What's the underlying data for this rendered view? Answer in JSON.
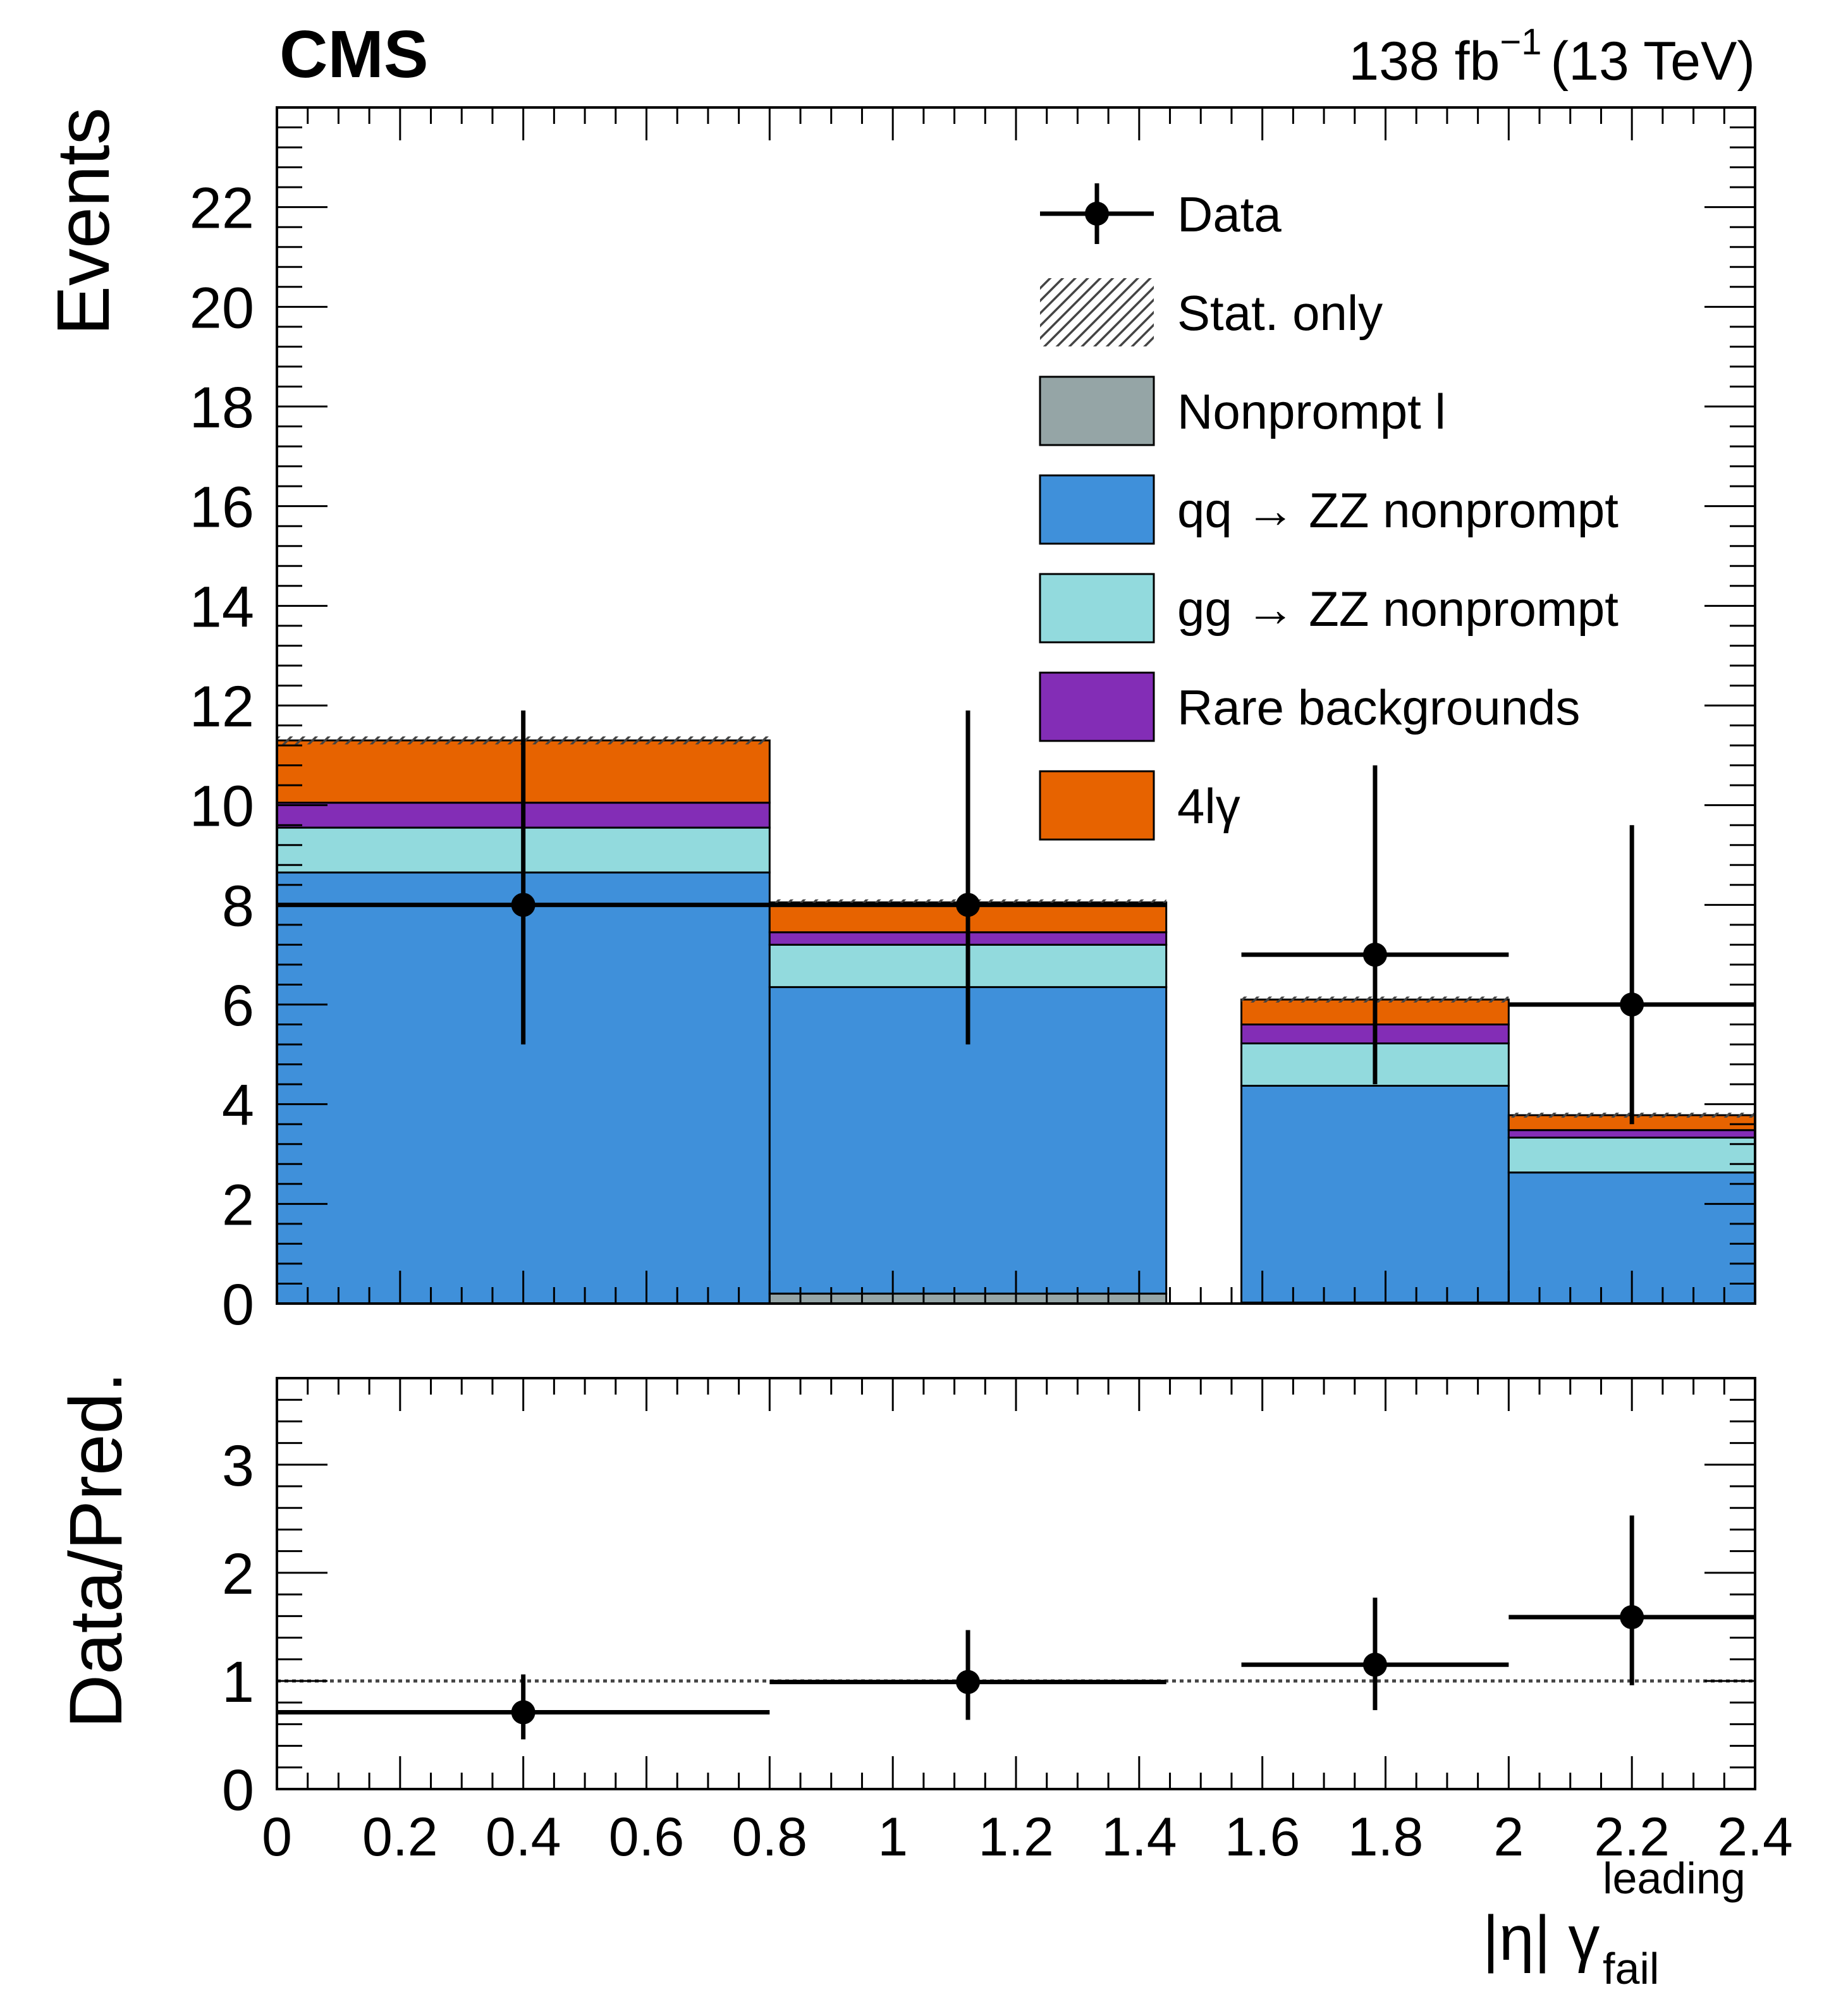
{
  "chart_data": {
    "type": "stacked_histogram_with_ratio",
    "experiment": "CMS",
    "lumi": {
      "value": "138",
      "unit": "fb",
      "exponent": "−1",
      "energy": "(13 TeV)"
    },
    "x_label": {
      "base": "|η| γ",
      "sub": "fail",
      "sup": "leading"
    },
    "x_range": [
      0,
      2.4
    ],
    "x_ticks": [
      "0",
      "0.2",
      "0.4",
      "0.6",
      "0.8",
      "1",
      "1.2",
      "1.4",
      "1.6",
      "1.8",
      "2",
      "2.2",
      "2.4"
    ],
    "upper": {
      "ylabel": "Events",
      "y_range": [
        0,
        24
      ],
      "y_ticks": [
        "0",
        "2",
        "4",
        "6",
        "8",
        "10",
        "12",
        "14",
        "16",
        "18",
        "20",
        "22"
      ]
    },
    "lower": {
      "ylabel": "Data/Pred.",
      "y_range": [
        0,
        3.8
      ],
      "y_ticks": [
        "0",
        "1",
        "2",
        "3"
      ],
      "reference": 1
    },
    "bins": [
      {
        "lo": 0.0,
        "hi": 0.8
      },
      {
        "lo": 0.8,
        "hi": 1.444
      },
      {
        "lo": 1.566,
        "hi": 2.0
      },
      {
        "lo": 2.0,
        "hi": 2.4
      }
    ],
    "stack": [
      {
        "name": "Nonprompt l",
        "color": "#95a5a6",
        "values": [
          0.0,
          0.2,
          0.02,
          0.0
        ]
      },
      {
        "name": "qq → ZZ nonprompt",
        "color": "#3f90da",
        "values": [
          8.65,
          6.15,
          4.35,
          2.63
        ]
      },
      {
        "name": "gg → ZZ nonprompt",
        "color": "#92dadd",
        "values": [
          0.9,
          0.85,
          0.85,
          0.7
        ]
      },
      {
        "name": "Rare backgrounds",
        "color": "#832db6",
        "values": [
          0.5,
          0.25,
          0.38,
          0.15
        ]
      },
      {
        "name": "4lγ",
        "color": "#e76300",
        "values": [
          1.25,
          0.6,
          0.5,
          0.3
        ]
      }
    ],
    "stat_unc": [
      0.08,
      0.06,
      0.06,
      0.05
    ],
    "data": [
      {
        "x": 0.4,
        "y": 8,
        "ylo": 5.2,
        "yhi": 11.9,
        "xlo": 0.0,
        "xhi": 0.8
      },
      {
        "x": 1.122,
        "y": 8,
        "ylo": 5.2,
        "yhi": 11.9,
        "xlo": 0.8,
        "xhi": 1.444
      },
      {
        "x": 1.783,
        "y": 7,
        "ylo": 4.4,
        "yhi": 10.8,
        "xlo": 1.566,
        "xhi": 2.0
      },
      {
        "x": 2.2,
        "y": 6,
        "ylo": 3.6,
        "yhi": 9.6,
        "xlo": 2.0,
        "xhi": 2.4
      }
    ],
    "ratio": [
      {
        "x": 0.4,
        "y": 0.71,
        "ylo": 0.46,
        "yhi": 1.06,
        "xlo": 0.0,
        "xhi": 0.8
      },
      {
        "x": 1.122,
        "y": 0.99,
        "ylo": 0.64,
        "yhi": 1.47,
        "xlo": 0.8,
        "xhi": 1.444
      },
      {
        "x": 1.783,
        "y": 1.15,
        "ylo": 0.73,
        "yhi": 1.77,
        "xlo": 1.566,
        "xhi": 2.0
      },
      {
        "x": 2.2,
        "y": 1.59,
        "ylo": 0.96,
        "yhi": 2.53,
        "xlo": 2.0,
        "xhi": 2.4
      }
    ],
    "legend": {
      "position": "top-right",
      "entries": [
        {
          "label": "Data",
          "style": "marker"
        },
        {
          "label": "Stat. only",
          "style": "hatch"
        },
        {
          "label": "Nonprompt l",
          "style": "fill",
          "color": "#95a5a6"
        },
        {
          "label": "qq → ZZ nonprompt",
          "style": "fill",
          "color": "#3f90da"
        },
        {
          "label": "gg → ZZ nonprompt",
          "style": "fill",
          "color": "#92dadd"
        },
        {
          "label": "Rare backgrounds",
          "style": "fill",
          "color": "#832db6"
        },
        {
          "label": "4lγ",
          "style": "fill",
          "color": "#e76300"
        }
      ]
    }
  }
}
